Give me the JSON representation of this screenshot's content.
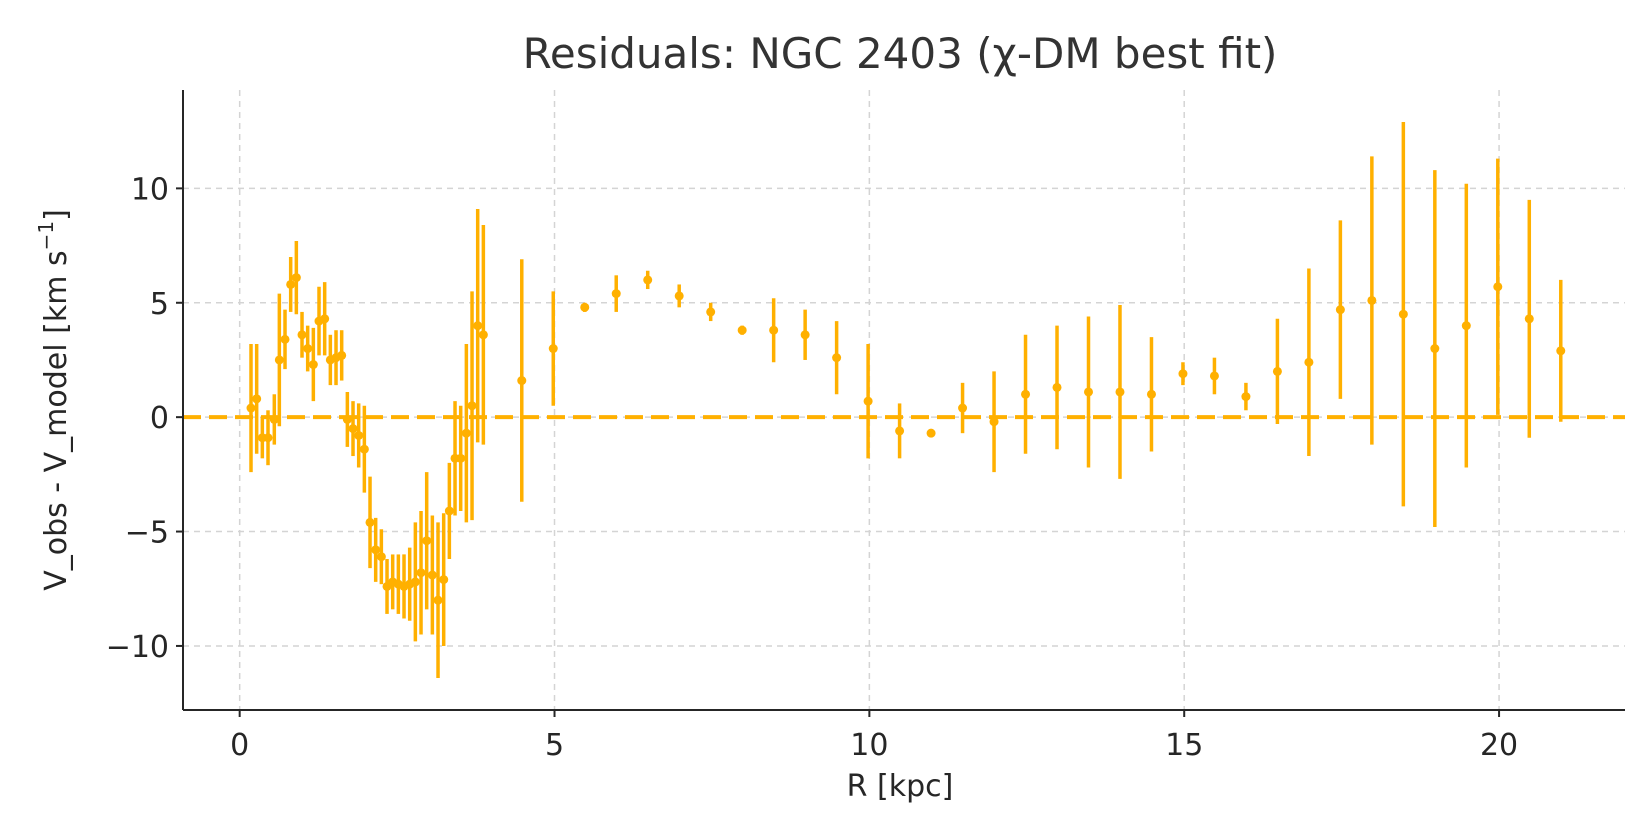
{
  "chart_data": {
    "type": "scatter",
    "title": "Residuals: NGC 2403 (χ-DM best fit)",
    "xlabel": "R [kpc]",
    "ylabel": "V_obs - V_model [km s⁻¹]",
    "ylabel_main": "V_obs - V_model [km s",
    "ylabel_sup": "−1",
    "ylabel_end": "]",
    "xlim": [
      -0.9,
      22.0
    ],
    "ylim": [
      -12.8,
      14.3
    ],
    "xticks": [
      0,
      5,
      10,
      15,
      20
    ],
    "xtick_labels": [
      "0",
      "5",
      "10",
      "15",
      "20"
    ],
    "yticks": [
      -10,
      -5,
      0,
      5,
      10
    ],
    "ytick_labels": [
      "−10",
      "−5",
      "0",
      "5",
      "10"
    ],
    "grid": true,
    "color": "#FFB000",
    "reference_line": {
      "y": 0,
      "style": "dashed"
    },
    "series": [
      {
        "points": [
          {
            "x": 0.18,
            "y": 0.4,
            "err": 2.8
          },
          {
            "x": 0.27,
            "y": 0.8,
            "err": 2.4
          },
          {
            "x": 0.36,
            "y": -0.9,
            "err": 0.9
          },
          {
            "x": 0.45,
            "y": -0.9,
            "err": 1.2
          },
          {
            "x": 0.55,
            "y": -0.1,
            "err": 1.1
          },
          {
            "x": 0.63,
            "y": 2.5,
            "err": 2.9
          },
          {
            "x": 0.72,
            "y": 3.4,
            "err": 1.3
          },
          {
            "x": 0.81,
            "y": 5.8,
            "err": 1.2
          },
          {
            "x": 0.9,
            "y": 6.1,
            "err": 1.6
          },
          {
            "x": 0.99,
            "y": 3.6,
            "err": 1.0
          },
          {
            "x": 1.08,
            "y": 3.0,
            "err": 1.0
          },
          {
            "x": 1.17,
            "y": 2.3,
            "err": 1.6
          },
          {
            "x": 1.26,
            "y": 4.2,
            "err": 1.5
          },
          {
            "x": 1.35,
            "y": 4.3,
            "err": 1.6
          },
          {
            "x": 1.44,
            "y": 2.5,
            "err": 1.1
          },
          {
            "x": 1.53,
            "y": 2.6,
            "err": 1.2
          },
          {
            "x": 1.62,
            "y": 2.7,
            "err": 1.1
          },
          {
            "x": 1.71,
            "y": -0.1,
            "err": 1.2
          },
          {
            "x": 1.8,
            "y": -0.5,
            "err": 1.2
          },
          {
            "x": 1.89,
            "y": -0.8,
            "err": 1.4
          },
          {
            "x": 1.98,
            "y": -1.4,
            "err": 1.9
          },
          {
            "x": 2.07,
            "y": -4.6,
            "err": 2.0
          },
          {
            "x": 2.16,
            "y": -5.8,
            "err": 1.4
          },
          {
            "x": 2.25,
            "y": -6.1,
            "err": 1.2
          },
          {
            "x": 2.34,
            "y": -7.4,
            "err": 1.2
          },
          {
            "x": 2.43,
            "y": -7.2,
            "err": 1.2
          },
          {
            "x": 2.52,
            "y": -7.3,
            "err": 1.3
          },
          {
            "x": 2.61,
            "y": -7.4,
            "err": 1.4
          },
          {
            "x": 2.7,
            "y": -7.3,
            "err": 1.6
          },
          {
            "x": 2.79,
            "y": -7.2,
            "err": 2.6
          },
          {
            "x": 2.88,
            "y": -6.8,
            "err": 2.7
          },
          {
            "x": 2.97,
            "y": -5.4,
            "err": 3.0
          },
          {
            "x": 3.06,
            "y": -6.9,
            "err": 2.6
          },
          {
            "x": 3.15,
            "y": -8.0,
            "err": 3.4
          },
          {
            "x": 3.24,
            "y": -7.1,
            "err": 2.9
          },
          {
            "x": 3.33,
            "y": -4.1,
            "err": 2.1
          },
          {
            "x": 3.42,
            "y": -1.8,
            "err": 2.5
          },
          {
            "x": 3.51,
            "y": -1.8,
            "err": 2.3
          },
          {
            "x": 3.6,
            "y": -0.7,
            "err": 3.9
          },
          {
            "x": 3.69,
            "y": 0.5,
            "err": 5.0
          },
          {
            "x": 3.78,
            "y": 4.0,
            "err": 5.1
          },
          {
            "x": 3.87,
            "y": 3.6,
            "err": 4.8
          },
          {
            "x": 4.48,
            "y": 1.6,
            "err": 5.3
          },
          {
            "x": 4.98,
            "y": 3.0,
            "err": 2.5
          },
          {
            "x": 5.48,
            "y": 4.8,
            "err": 0.2
          },
          {
            "x": 5.98,
            "y": 5.4,
            "err": 0.8
          },
          {
            "x": 6.48,
            "y": 6.0,
            "err": 0.4
          },
          {
            "x": 6.98,
            "y": 5.3,
            "err": 0.5
          },
          {
            "x": 7.48,
            "y": 4.6,
            "err": 0.4
          },
          {
            "x": 7.98,
            "y": 3.8,
            "err": 0.2
          },
          {
            "x": 8.48,
            "y": 3.8,
            "err": 1.4
          },
          {
            "x": 8.98,
            "y": 3.6,
            "err": 1.1
          },
          {
            "x": 9.48,
            "y": 2.6,
            "err": 1.6
          },
          {
            "x": 9.98,
            "y": 0.7,
            "err": 2.5
          },
          {
            "x": 10.48,
            "y": -0.6,
            "err": 1.2
          },
          {
            "x": 10.98,
            "y": -0.7,
            "err": 0.1
          },
          {
            "x": 11.48,
            "y": 0.4,
            "err": 1.1
          },
          {
            "x": 11.98,
            "y": -0.2,
            "err": 2.2
          },
          {
            "x": 12.48,
            "y": 1.0,
            "err": 2.6
          },
          {
            "x": 12.98,
            "y": 1.3,
            "err": 2.7
          },
          {
            "x": 13.48,
            "y": 1.1,
            "err": 3.3
          },
          {
            "x": 13.98,
            "y": 1.1,
            "err": 3.8
          },
          {
            "x": 14.48,
            "y": 1.0,
            "err": 2.5
          },
          {
            "x": 14.98,
            "y": 1.9,
            "err": 0.5
          },
          {
            "x": 15.48,
            "y": 1.8,
            "err": 0.8
          },
          {
            "x": 15.98,
            "y": 0.9,
            "err": 0.6
          },
          {
            "x": 16.48,
            "y": 2.0,
            "err": 2.3
          },
          {
            "x": 16.98,
            "y": 2.4,
            "err": 4.1
          },
          {
            "x": 17.48,
            "y": 4.7,
            "err": 3.9
          },
          {
            "x": 17.98,
            "y": 5.1,
            "err": 6.3
          },
          {
            "x": 18.48,
            "y": 4.5,
            "err": 8.4
          },
          {
            "x": 18.98,
            "y": 3.0,
            "err": 7.8
          },
          {
            "x": 19.48,
            "y": 4.0,
            "err": 6.2
          },
          {
            "x": 19.98,
            "y": 5.7,
            "err": 5.6
          },
          {
            "x": 20.48,
            "y": 4.3,
            "err": 5.2
          },
          {
            "x": 20.98,
            "y": 2.9,
            "err": 3.1
          }
        ]
      }
    ]
  }
}
